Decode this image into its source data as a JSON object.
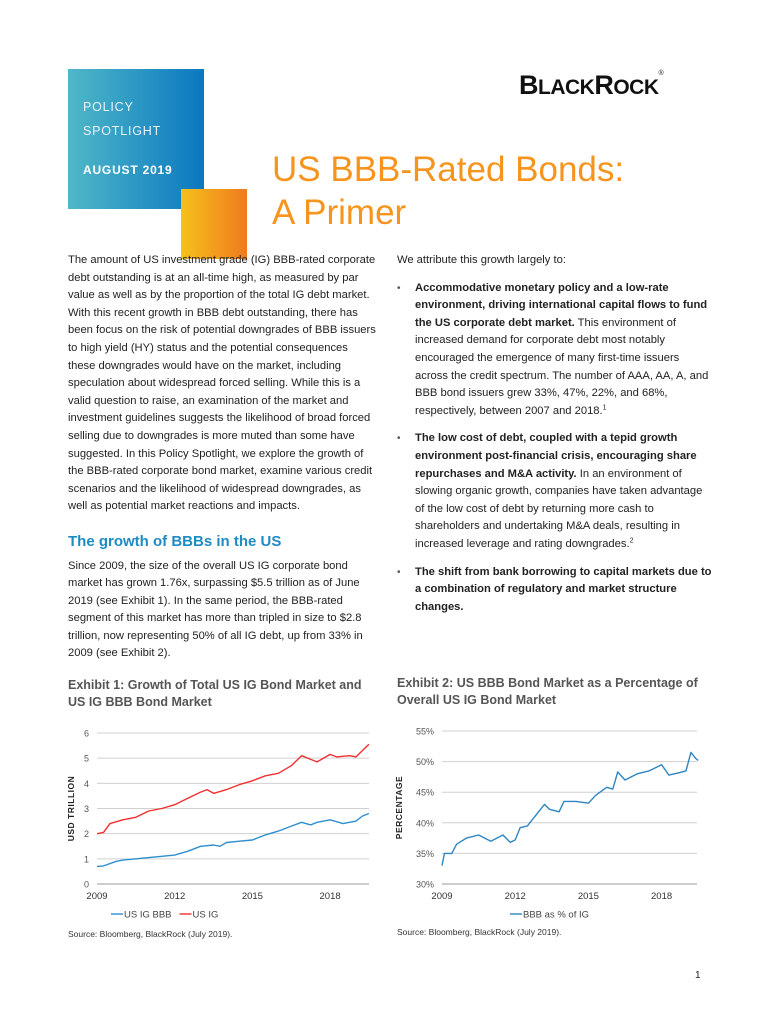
{
  "header": {
    "series_line1": "POLICY",
    "series_line2": "SPOTLIGHT",
    "date": "AUGUST 2019",
    "logo": "BlackRock",
    "title_line1": "US BBB-Rated Bonds:",
    "title_line2": "A Primer",
    "colors": {
      "blue": "#0a78c0",
      "teal": "#4fb8c8",
      "orange": "#f7941d",
      "yellow": "#f5c11b"
    }
  },
  "left": {
    "intro": "The amount of US investment grade (IG) BBB-rated corporate debt outstanding is at an all-time high, as measured by par value as well as by the proportion of the total IG debt market. With this recent growth in BBB debt outstanding, there has been focus on the risk of potential downgrades of BBB issuers to high yield (HY) status and the potential consequences these downgrades would have on the market, including speculation about widespread forced selling. While this is a valid question to raise, an examination of the market and investment guidelines suggests the likelihood of broad forced selling due to downgrades is more muted than some have suggested. In this Policy Spotlight, we explore the growth of the BBB-rated corporate bond market, examine various credit scenarios and the likelihood of widespread downgrades, as well as potential market reactions and impacts.",
    "heading": "The growth of BBBs in the US",
    "growth": "Since 2009, the size of the overall US IG corporate bond market has grown 1.76x, surpassing $5.5 trillion as of June 2019 (see Exhibit 1). In the same period, the BBB-rated segment of this market has more than tripled in size to $2.8 trillion, now representing 50% of all IG debt, up from 33% in 2009 (see Exhibit 2)."
  },
  "right": {
    "lead": "We attribute this growth largely to:",
    "bullets": [
      {
        "bold": "Accommodative monetary policy and a low-rate environment, driving international capital flows to fund the US corporate debt market.",
        "text": " This environment of increased demand for corporate debt most notably encouraged the emergence of many first-time issuers across the credit spectrum. The number of AAA, AA, A, and BBB bond issuers grew 33%, 47%, 22%, and 68%, respectively, between 2007 and 2018.",
        "note": "1"
      },
      {
        "bold": "The low cost of debt, coupled with a tepid growth environment post-financial crisis, encouraging share repurchases and M&A activity.",
        "text": " In an environment of slowing organic growth, companies have taken advantage of the low cost of debt by returning more cash to shareholders and undertaking M&A deals, resulting in increased leverage and rating downgrades.",
        "note": "2"
      },
      {
        "bold": "The shift from bank borrowing to capital markets due to a combination of regulatory and market structure changes.",
        "text": "",
        "note": ""
      }
    ]
  },
  "exhibit1": {
    "title": "Exhibit 1: Growth of Total US IG Bond Market and US IG BBB Bond Market",
    "source": "Source: Bloomberg, BlackRock (July 2019)."
  },
  "exhibit2": {
    "title": "Exhibit 2: US BBB Bond Market as a Percentage of Overall US IG Bond Market",
    "source": "Source: Bloomberg, BlackRock (July 2019)."
  },
  "page_number": "1",
  "chart_data": [
    {
      "type": "line",
      "ylabel": "USD TRILLION",
      "ylim": [
        0,
        6
      ],
      "yticks": [
        "0",
        "1",
        "2",
        "3",
        "4",
        "5",
        "6"
      ],
      "xticks": [
        "2009",
        "2012",
        "2015",
        "2018"
      ],
      "grid": true,
      "legend": "bottom",
      "series": [
        {
          "name": "US IG BBB",
          "color": "#2e8fd0",
          "x": [
            2009,
            2009.25,
            2009.75,
            2010,
            2011,
            2011.5,
            2012,
            2012.5,
            2013,
            2013.5,
            2013.75,
            2014,
            2014.5,
            2015,
            2015.5,
            2016,
            2016.5,
            2016.9,
            2017.25,
            2017.5,
            2018,
            2018.5,
            2019,
            2019.25,
            2019.5
          ],
          "y": [
            0.7,
            0.72,
            0.9,
            0.95,
            1.05,
            1.1,
            1.15,
            1.3,
            1.5,
            1.55,
            1.5,
            1.65,
            1.7,
            1.75,
            1.95,
            2.1,
            2.3,
            2.45,
            2.35,
            2.45,
            2.55,
            2.4,
            2.5,
            2.7,
            2.8
          ]
        },
        {
          "name": "US IG",
          "color": "#f03030",
          "x": [
            2009,
            2009.25,
            2009.5,
            2010,
            2010.5,
            2011,
            2011.5,
            2012,
            2012.5,
            2013,
            2013.25,
            2013.5,
            2014,
            2014.5,
            2015,
            2015.5,
            2016,
            2016.5,
            2016.9,
            2017.25,
            2017.5,
            2018,
            2018.25,
            2018.75,
            2019,
            2019.5
          ],
          "y": [
            2.0,
            2.05,
            2.4,
            2.55,
            2.65,
            2.9,
            3.0,
            3.15,
            3.4,
            3.65,
            3.75,
            3.6,
            3.75,
            3.95,
            4.1,
            4.3,
            4.4,
            4.7,
            5.1,
            4.95,
            4.85,
            5.15,
            5.05,
            5.1,
            5.05,
            5.55
          ]
        }
      ]
    },
    {
      "type": "line",
      "ylabel": "PERCENTAGE",
      "ylim": [
        30,
        55
      ],
      "yticks": [
        "30%",
        "35%",
        "40%",
        "45%",
        "50%",
        "55%"
      ],
      "xticks": [
        "2009",
        "2012",
        "2015",
        "2018"
      ],
      "grid": true,
      "legend": "bottom",
      "series": [
        {
          "name": "BBB as % of IG",
          "color": "#2e86c1",
          "x": [
            2009,
            2009.1,
            2009.4,
            2009.6,
            2010,
            2010.5,
            2011,
            2011.5,
            2011.8,
            2012,
            2012.2,
            2012.5,
            2012.8,
            2013.2,
            2013.4,
            2013.8,
            2014,
            2014.5,
            2015,
            2015.3,
            2015.75,
            2016,
            2016.2,
            2016.5,
            2017,
            2017.5,
            2018,
            2018.3,
            2018.75,
            2019,
            2019.2,
            2019.4,
            2019.5
          ],
          "y": [
            33,
            35,
            35,
            36.5,
            37.5,
            38,
            37,
            38,
            36.8,
            37.2,
            39.2,
            39.5,
            41,
            43,
            42.2,
            41.8,
            43.5,
            43.5,
            43.2,
            44.5,
            45.8,
            45.5,
            48.3,
            47,
            48,
            48.5,
            49.5,
            47.8,
            48.2,
            48.5,
            51.5,
            50.5,
            50.2
          ]
        }
      ]
    }
  ]
}
